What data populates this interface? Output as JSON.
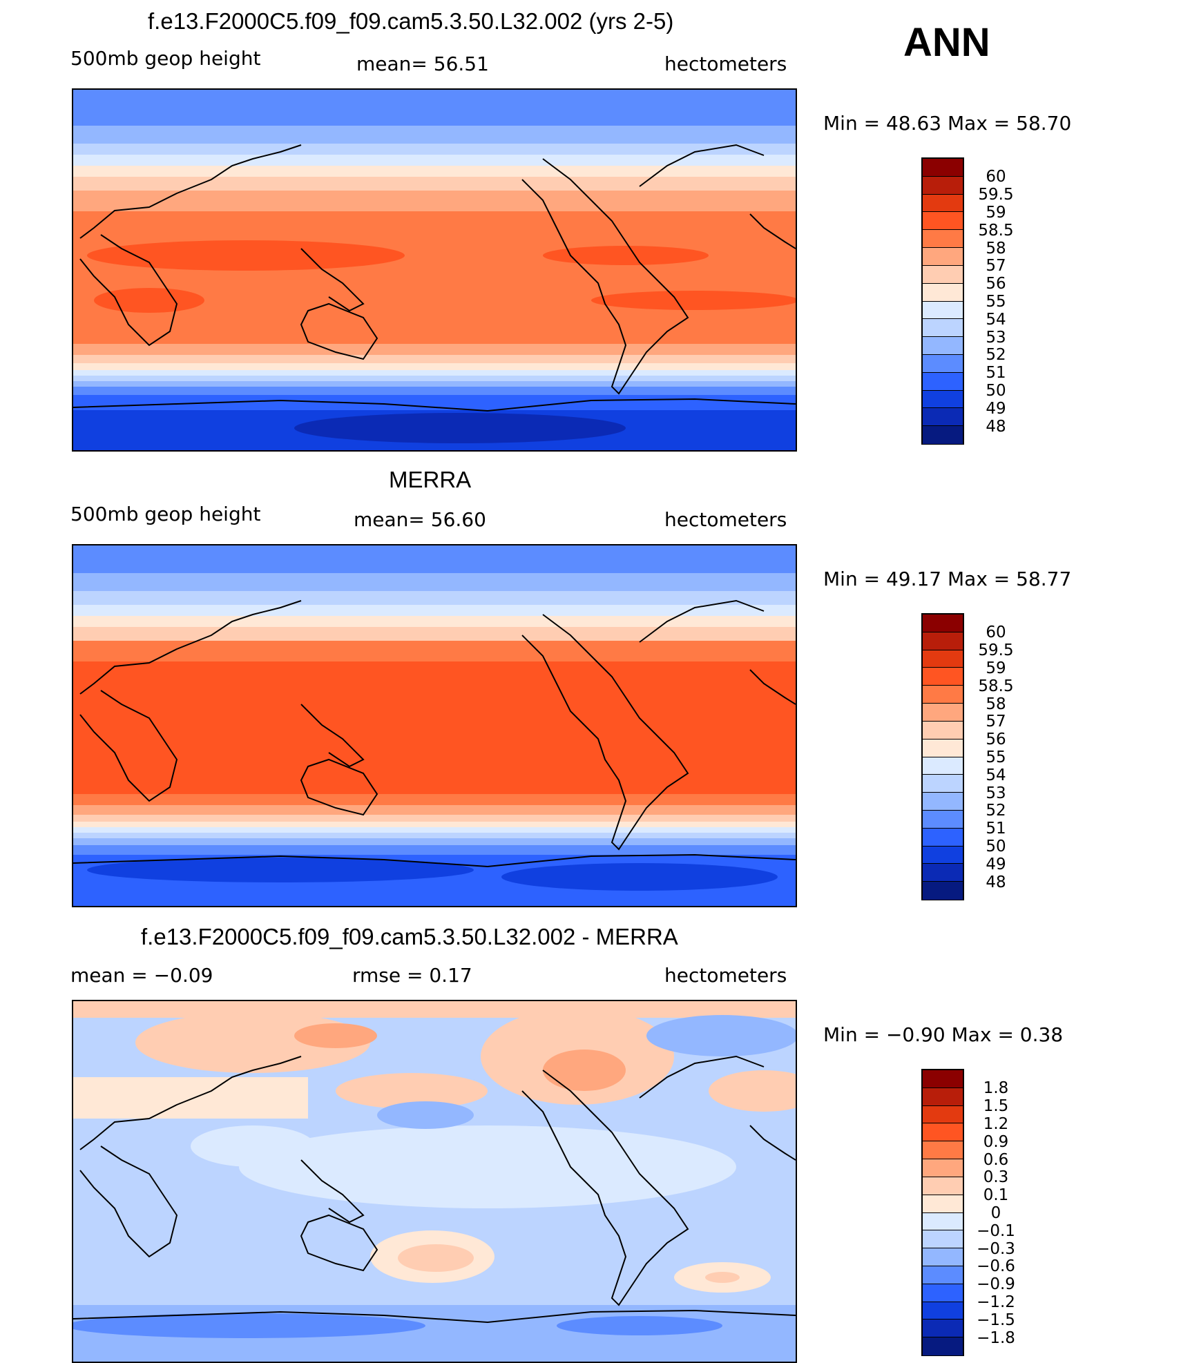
{
  "season": "ANN",
  "panels": [
    {
      "title": "f.e13.F2000C5.f09_f09.cam5.3.50.L32.002 (yrs 2-5)",
      "left_label": "500mb geop height",
      "center_label": "mean=  56.51",
      "right_label": "hectometers",
      "min_max": "Min =   48.63 Max =   58.70",
      "legend_labels": [
        "60",
        "59.5",
        "59",
        "58.5",
        "58",
        "57",
        "56",
        "55",
        "54",
        "53",
        "52",
        "51",
        "50",
        "49",
        "48"
      ]
    },
    {
      "title": "MERRA",
      "left_label": "500mb geop height",
      "center_label": "mean=  56.60",
      "right_label": "hectometers",
      "min_max": "Min =   49.17 Max =   58.77",
      "legend_labels": [
        "60",
        "59.5",
        "59",
        "58.5",
        "58",
        "57",
        "56",
        "55",
        "54",
        "53",
        "52",
        "51",
        "50",
        "49",
        "48"
      ]
    },
    {
      "title": "f.e13.F2000C5.f09_f09.cam5.3.50.L32.002 - MERRA",
      "left_label": "mean =   −0.09",
      "center_label": "rmse =    0.17",
      "right_label": "hectometers",
      "min_max": "Min =   −0.90 Max =    0.38",
      "legend_labels": [
        "1.8",
        "1.5",
        "1.2",
        "0.9",
        "0.6",
        "0.3",
        "0.1",
        "0",
        "−0.1",
        "−0.3",
        "−0.6",
        "−0.9",
        "−1.2",
        "−1.5",
        "−1.8"
      ]
    }
  ],
  "colors": {
    "palette": [
      "#8b0000",
      "#b81e0a",
      "#e33a10",
      "#ff5522",
      "#ff7a45",
      "#ffa77e",
      "#ffcdb2",
      "#ffe8d6",
      "#dbeaff",
      "#bcd4ff",
      "#93b7ff",
      "#5c8cff",
      "#2d62ff",
      "#1040e0",
      "#0b2ab5",
      "#061a80"
    ]
  }
}
